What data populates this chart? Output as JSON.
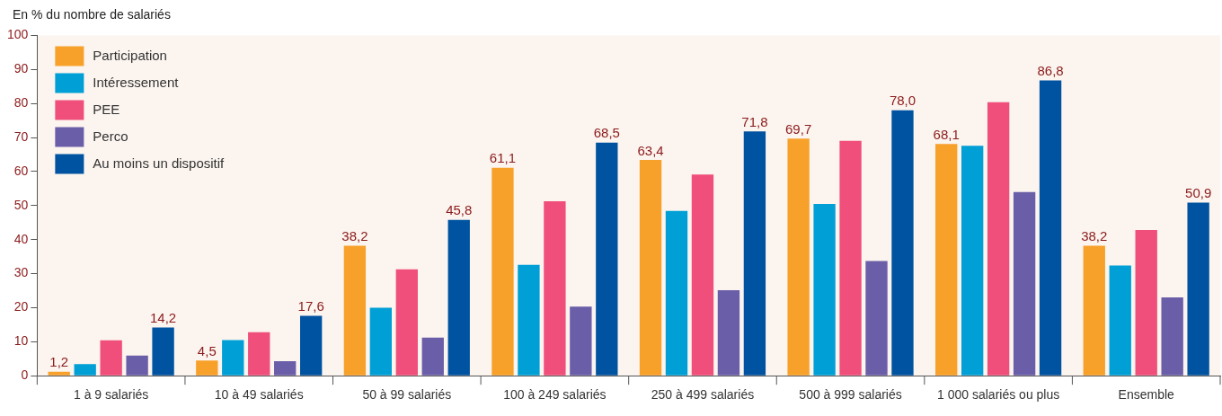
{
  "chart_data": {
    "type": "bar",
    "ylabel": "En % du nombre de salariés",
    "categories": [
      "1 à 9 salariés",
      "10 à 49 salariés",
      "50 à 99 salariés",
      "100 à 249 salariés",
      "250 à 499 salariés",
      "500 à 999 salariés",
      "1 000 salariés ou plus",
      "Ensemble"
    ],
    "series": [
      {
        "name": "Participation",
        "color": "#f7a12b",
        "values": [
          1.2,
          4.5,
          38.2,
          61.1,
          63.4,
          69.7,
          68.1,
          38.2
        ],
        "value_labels": [
          "1,2",
          "4,5",
          "38,2",
          "61,1",
          "63,4",
          "69,7",
          "68,1",
          "38,2"
        ]
      },
      {
        "name": "Intéressement",
        "color": "#00a0d6",
        "values": [
          3.4,
          10.5,
          20,
          32.6,
          48.4,
          50.5,
          67.6,
          32.4
        ]
      },
      {
        "name": "PEE",
        "color": "#ef4f7a",
        "values": [
          10.4,
          12.8,
          31.3,
          51.3,
          59.1,
          69,
          80.4,
          42.8
        ]
      },
      {
        "name": "Perco",
        "color": "#6b5ea8",
        "values": [
          5.9,
          4.3,
          11.2,
          20.3,
          25.1,
          33.7,
          54,
          23
        ]
      },
      {
        "name": "Au moins un dispositif",
        "color": "#0053a0",
        "values": [
          14.2,
          17.6,
          45.8,
          68.5,
          71.8,
          78,
          86.8,
          50.9
        ],
        "value_labels": [
          "14,2",
          "17,6",
          "45,8",
          "68,5",
          "71,8",
          "78,0",
          "86,8",
          "50,9"
        ]
      }
    ],
    "ylim": [
      0,
      100
    ],
    "yticks": [
      0,
      10,
      20,
      30,
      40,
      50,
      60,
      70,
      80,
      90,
      100
    ],
    "grid": false,
    "legend": "top left"
  }
}
